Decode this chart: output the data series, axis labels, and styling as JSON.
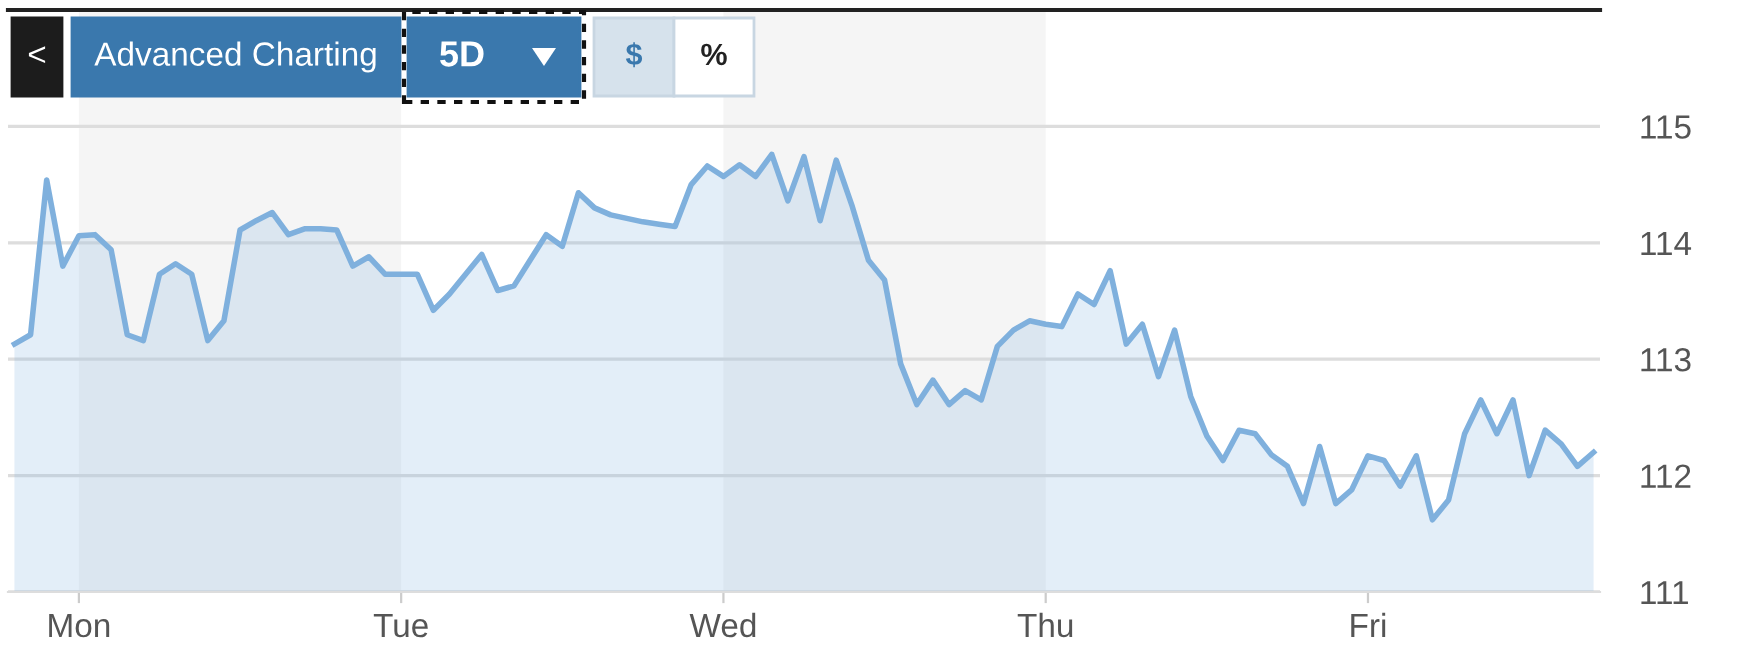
{
  "chart_data": {
    "type": "area",
    "categories": [
      null,
      null,
      null,
      null,
      "Mon",
      null,
      null,
      null,
      null,
      null,
      null,
      null,
      null,
      null,
      null,
      null,
      null,
      null,
      null,
      null,
      null,
      null,
      null,
      null,
      "Tue",
      null,
      null,
      null,
      null,
      null,
      null,
      null,
      null,
      null,
      null,
      null,
      null,
      null,
      null,
      null,
      null,
      null,
      null,
      null,
      "Wed",
      null,
      null,
      null,
      null,
      null,
      null,
      null,
      null,
      null,
      null,
      null,
      null,
      null,
      null,
      null,
      null,
      null,
      null,
      null,
      "Thu",
      null,
      null,
      null,
      null,
      null,
      null,
      null,
      null,
      null,
      null,
      null,
      null,
      null,
      null,
      null,
      null,
      null,
      null,
      null,
      "Fri",
      null,
      null,
      null,
      null,
      null,
      null,
      null,
      null,
      null,
      null,
      null,
      null,
      null,
      null
    ],
    "series": [
      {
        "color": "#7fb0dd",
        "values": [
          113.13,
          113.21,
          114.54,
          113.8,
          114.06,
          114.07,
          113.94,
          113.21,
          113.16,
          113.73,
          113.82,
          113.73,
          113.16,
          113.33,
          114.11,
          114.19,
          114.26,
          114.07,
          114.12,
          114.12,
          114.11,
          113.8,
          113.88,
          113.73,
          113.73,
          113.73,
          113.42,
          113.56,
          113.73,
          113.9,
          113.59,
          113.63,
          113.85,
          114.07,
          113.97,
          114.43,
          114.3,
          114.24,
          114.21,
          114.18,
          114.16,
          114.14,
          114.5,
          114.66,
          114.57,
          114.67,
          114.57,
          114.76,
          114.36,
          114.74,
          114.19,
          114.71,
          114.31,
          113.85,
          113.68,
          112.96,
          112.61,
          112.82,
          112.61,
          112.73,
          112.65,
          113.11,
          113.25,
          113.33,
          113.3,
          113.28,
          113.56,
          113.47,
          113.76,
          113.13,
          113.3,
          112.85,
          113.25,
          112.68,
          112.34,
          112.13,
          112.39,
          112.36,
          112.18,
          112.08,
          111.76,
          112.25,
          111.76,
          111.88,
          112.17,
          112.13,
          111.91,
          112.17,
          111.62,
          111.79,
          112.36,
          112.65,
          112.36,
          112.65,
          112.0,
          112.39,
          112.27,
          112.08,
          112.2
        ]
      }
    ],
    "ylim": [
      111,
      116
    ],
    "yticks": [
      111,
      112,
      113,
      114,
      115
    ],
    "grid": "y",
    "bands": [
      {
        "axis": "x",
        "from": "Mon",
        "to": "Tue",
        "color": "#f5f5f5"
      },
      {
        "axis": "x",
        "from": "Wed",
        "to": "Thu",
        "color": "#f5f5f5"
      }
    ],
    "annotations": [
      "<",
      "Advanced Charting",
      "5D",
      "$",
      "%"
    ]
  }
}
